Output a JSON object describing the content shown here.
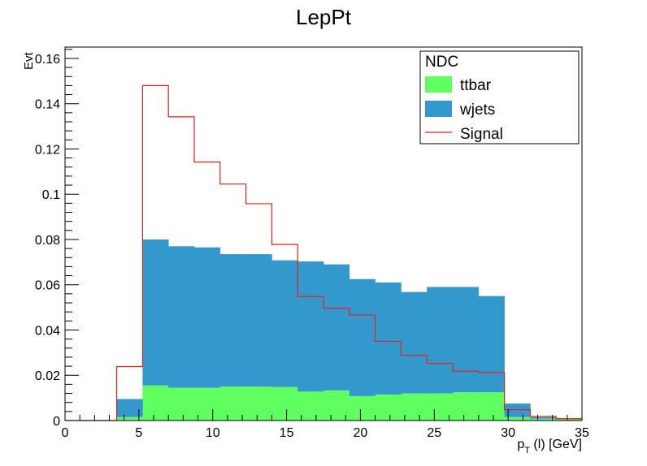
{
  "chart_data": {
    "type": "histogram",
    "title": "LepPt",
    "xlabel_main": "p",
    "xlabel_sub": "T",
    "xlabel_rest": " (l) [GeV]",
    "ylabel": "Evt",
    "xlim": [
      0,
      35
    ],
    "ylim": [
      0,
      0.165
    ],
    "grid": false,
    "legend_position": "top-right",
    "legend_title": "NDC",
    "x_ticks": [
      "0",
      "5",
      "10",
      "15",
      "20",
      "25",
      "30",
      "35"
    ],
    "x_tick_values": [
      0,
      5,
      10,
      15,
      20,
      25,
      30,
      35
    ],
    "y_ticks": [
      "0",
      "0.02",
      "0.04",
      "0.06",
      "0.08",
      "0.1",
      "0.12",
      "0.14",
      "0.16"
    ],
    "y_tick_values": [
      0,
      0.02,
      0.04,
      0.06,
      0.08,
      0.1,
      0.12,
      0.14,
      0.16
    ],
    "bin_edges": [
      0,
      1.75,
      3.5,
      5.25,
      7,
      8.75,
      10.5,
      12.25,
      14,
      15.75,
      17.5,
      19.25,
      21,
      22.75,
      24.5,
      26.25,
      28,
      29.75,
      31.5,
      33.25,
      35
    ],
    "series": [
      {
        "name": "ttbar",
        "style": "stacked-fill",
        "color": "#5fff5f",
        "values": [
          0,
          0,
          0.0015,
          0.0155,
          0.0145,
          0.0145,
          0.015,
          0.015,
          0.0148,
          0.0128,
          0.0133,
          0.0108,
          0.0115,
          0.012,
          0.012,
          0.0125,
          0.0125,
          0.0015,
          0.0008,
          0.0008
        ]
      },
      {
        "name": "wjets",
        "style": "stacked-fill",
        "color": "#3399cc",
        "values": [
          0,
          0,
          0.008,
          0.0645,
          0.0625,
          0.062,
          0.0585,
          0.0585,
          0.056,
          0.0575,
          0.0557,
          0.0517,
          0.0495,
          0.0448,
          0.047,
          0.0465,
          0.0425,
          0.006,
          0.0007,
          0.0002
        ]
      },
      {
        "name": "Signal",
        "style": "step-line",
        "color": "#e82020",
        "values": [
          0,
          0,
          0.0238,
          0.148,
          0.1342,
          0.1142,
          0.1045,
          0.0958,
          0.0778,
          0.0548,
          0.0496,
          0.0466,
          0.035,
          0.0288,
          0.0253,
          0.0218,
          0.0213,
          0.0048,
          0.0018,
          0.0008
        ]
      }
    ]
  }
}
